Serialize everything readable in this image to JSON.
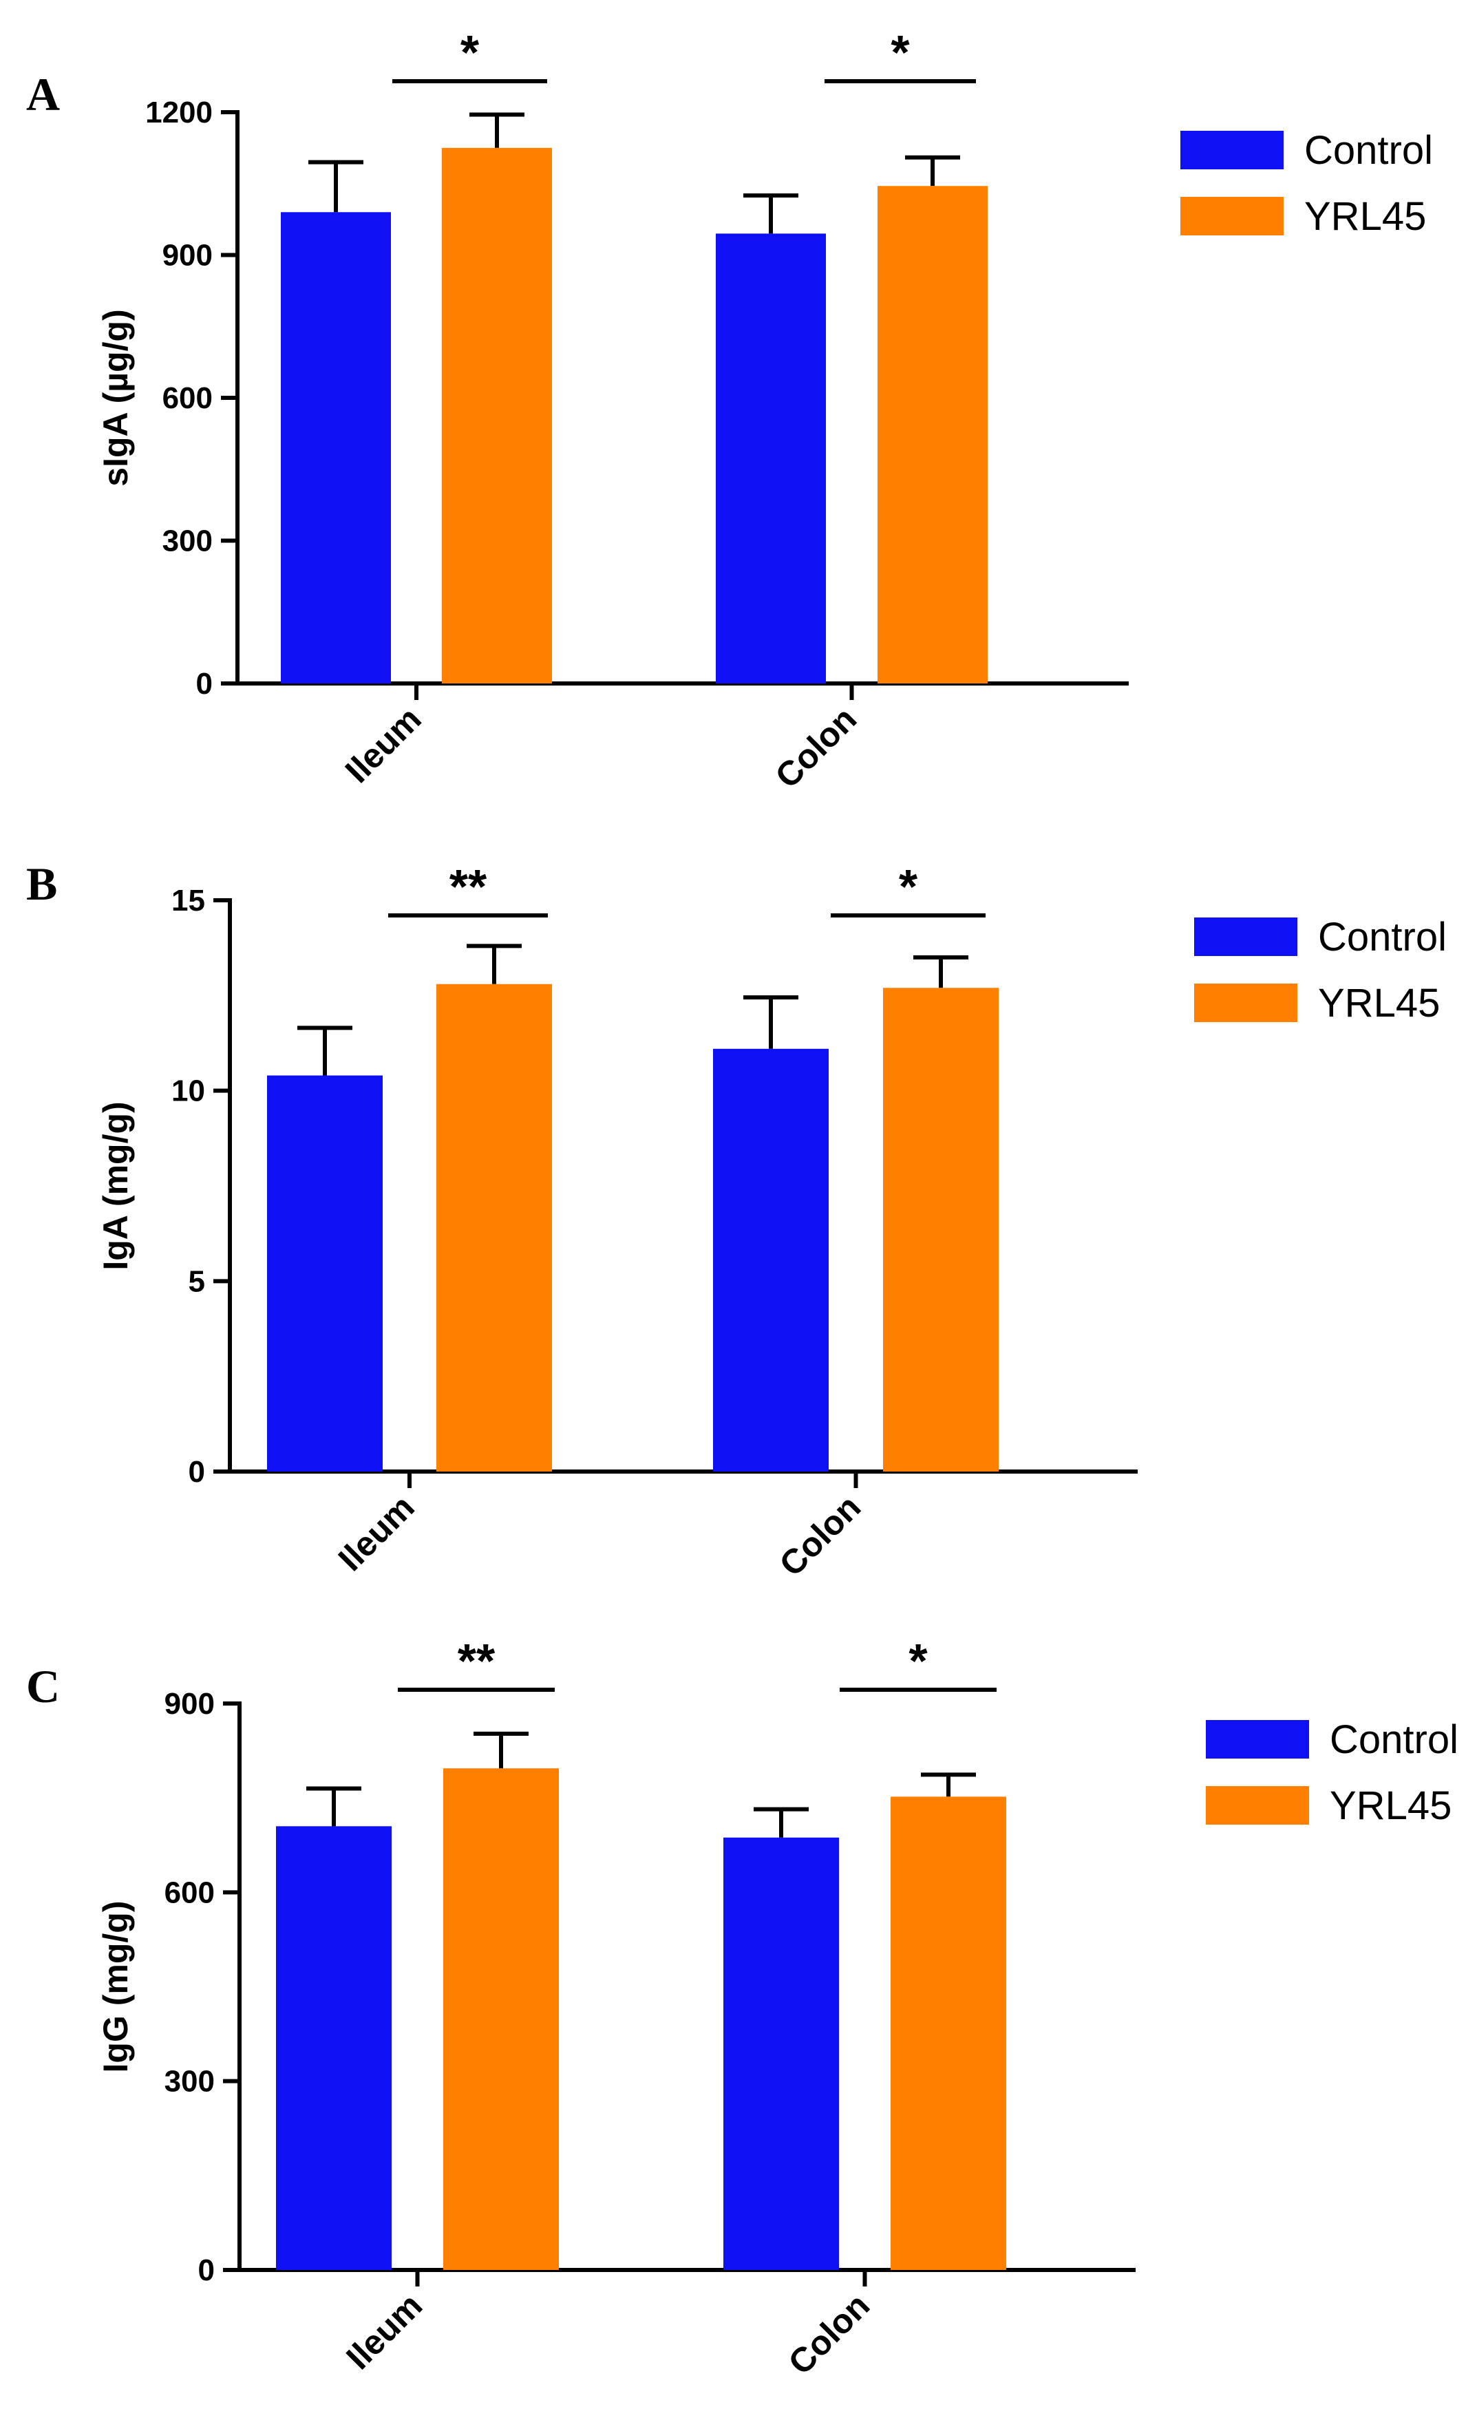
{
  "colors": {
    "control": "#1010F5",
    "yrl45": "#FF7F00"
  },
  "chart_data": [
    {
      "type": "bar",
      "panel": "A",
      "ylabel": "sIgA (µg/g)",
      "ylim": [
        0,
        1200
      ],
      "yticks": [
        0,
        300,
        600,
        900,
        1200
      ],
      "categories": [
        "Ileum",
        "Colon"
      ],
      "series": [
        {
          "name": "Control",
          "values": [
            990,
            945
          ],
          "errors": [
            105,
            80
          ]
        },
        {
          "name": "YRL45",
          "values": [
            1125,
            1045
          ],
          "errors": [
            70,
            60
          ]
        }
      ],
      "significance": [
        "*",
        "*"
      ],
      "legend": [
        "Control",
        "YRL45"
      ]
    },
    {
      "type": "bar",
      "panel": "B",
      "ylabel": "IgA (mg/g)",
      "ylim": [
        0,
        15
      ],
      "yticks": [
        0,
        5,
        10,
        15
      ],
      "categories": [
        "Ileum",
        "Colon"
      ],
      "series": [
        {
          "name": "Control",
          "values": [
            10.4,
            11.1
          ],
          "errors": [
            1.25,
            1.35
          ]
        },
        {
          "name": "YRL45",
          "values": [
            12.8,
            12.7
          ],
          "errors": [
            1.0,
            0.8
          ]
        }
      ],
      "significance": [
        "**",
        "*"
      ],
      "legend": [
        "Control",
        "YRL45"
      ]
    },
    {
      "type": "bar",
      "panel": "C",
      "ylabel": "IgG (mg/g)",
      "ylim": [
        0,
        900
      ],
      "yticks": [
        0,
        300,
        600,
        900
      ],
      "categories": [
        "Ileum",
        "Colon"
      ],
      "series": [
        {
          "name": "Control",
          "values": [
            705,
            687
          ],
          "errors": [
            60,
            45
          ]
        },
        {
          "name": "YRL45",
          "values": [
            797,
            752
          ],
          "errors": [
            55,
            35
          ]
        }
      ],
      "significance": [
        "**",
        "*"
      ],
      "legend": [
        "Control",
        "YRL45"
      ]
    }
  ]
}
